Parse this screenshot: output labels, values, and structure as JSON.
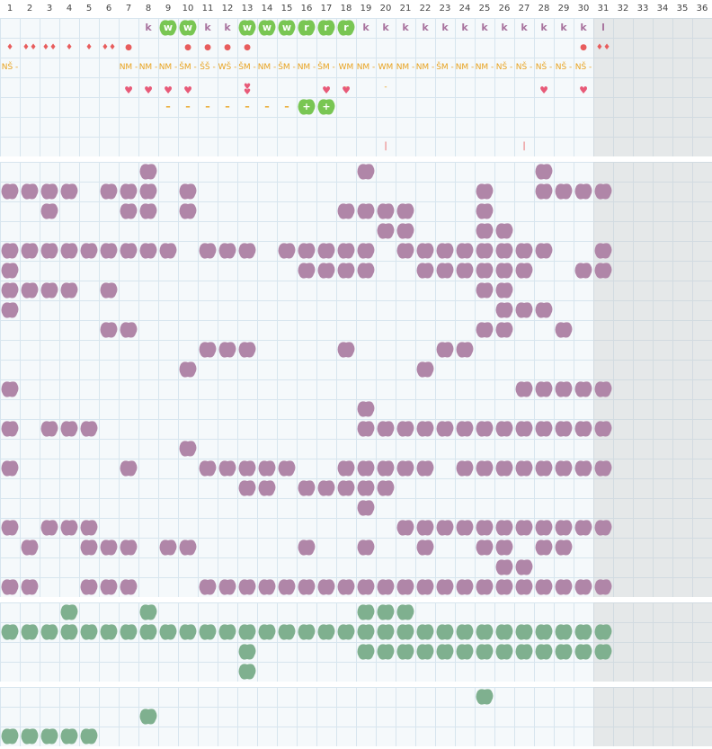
{
  "days": [
    "1",
    "2",
    "3",
    "4",
    "5",
    "6",
    "7",
    "8",
    "9",
    "10",
    "11",
    "12",
    "13",
    "14",
    "15",
    "16",
    "17",
    "18",
    "19",
    "20",
    "21",
    "22",
    "23",
    "24",
    "25",
    "26",
    "27",
    "28",
    "29",
    "30",
    "31",
    "32",
    "33",
    "34",
    "35",
    "36"
  ],
  "colors": {
    "bg": "#f5f9fb",
    "grid": "#d7e5ee",
    "weekend": "#efefef",
    "purple": "#b086a8",
    "green": "#7fb08f",
    "bright_green": "#79c653",
    "k_text": "#a8739e",
    "red": "#e85d5d",
    "orange": "#e8a21e",
    "heart": "#e85a78"
  },
  "top_rows": [
    {
      "name": "k-row",
      "cells": [
        {
          "day": 8,
          "type": "text",
          "value": "k"
        },
        {
          "day": 9,
          "type": "badge",
          "value": "w"
        },
        {
          "day": 10,
          "type": "badge",
          "value": "w"
        },
        {
          "day": 11,
          "type": "text",
          "value": "k"
        },
        {
          "day": 12,
          "type": "text",
          "value": "k"
        },
        {
          "day": 13,
          "type": "badge",
          "value": "w"
        },
        {
          "day": 14,
          "type": "badge",
          "value": "w"
        },
        {
          "day": 15,
          "type": "badge",
          "value": "w"
        },
        {
          "day": 16,
          "type": "badge",
          "value": "r"
        },
        {
          "day": 17,
          "type": "badge",
          "value": "r"
        },
        {
          "day": 18,
          "type": "badge",
          "value": "r"
        },
        {
          "day": 19,
          "type": "text",
          "value": "k"
        },
        {
          "day": 20,
          "type": "text",
          "value": "k"
        },
        {
          "day": 21,
          "type": "text",
          "value": "k"
        },
        {
          "day": 22,
          "type": "text",
          "value": "k"
        },
        {
          "day": 23,
          "type": "text",
          "value": "k"
        },
        {
          "day": 24,
          "type": "text",
          "value": "k"
        },
        {
          "day": 25,
          "type": "text",
          "value": "k"
        },
        {
          "day": 26,
          "type": "text",
          "value": "k"
        },
        {
          "day": 27,
          "type": "text",
          "value": "k"
        },
        {
          "day": 28,
          "type": "text",
          "value": "k"
        },
        {
          "day": 29,
          "type": "text",
          "value": "k"
        },
        {
          "day": 30,
          "type": "text",
          "value": "k"
        },
        {
          "day": 31,
          "type": "text",
          "value": "l"
        }
      ]
    },
    {
      "name": "drop-row",
      "cells": [
        {
          "day": 1,
          "type": "drop",
          "value": "1"
        },
        {
          "day": 2,
          "type": "drop",
          "value": "2"
        },
        {
          "day": 3,
          "type": "drop",
          "value": "2"
        },
        {
          "day": 4,
          "type": "drop",
          "value": "1"
        },
        {
          "day": 5,
          "type": "drop",
          "value": "1"
        },
        {
          "day": 6,
          "type": "drop",
          "value": "2"
        },
        {
          "day": 7,
          "type": "dot"
        },
        {
          "day": 10,
          "type": "dot"
        },
        {
          "day": 11,
          "type": "dot"
        },
        {
          "day": 12,
          "type": "dot"
        },
        {
          "day": 13,
          "type": "dot"
        },
        {
          "day": 30,
          "type": "dot"
        },
        {
          "day": 31,
          "type": "drop",
          "value": "2"
        }
      ]
    },
    {
      "name": "shift-row",
      "cells": [
        {
          "day": 1,
          "type": "code",
          "value": "NŠ -"
        },
        {
          "day": 7,
          "type": "code",
          "value": "NM -"
        },
        {
          "day": 8,
          "type": "code",
          "value": "NM -"
        },
        {
          "day": 9,
          "type": "code",
          "value": "NM -"
        },
        {
          "day": 10,
          "type": "code",
          "value": "ŠM -"
        },
        {
          "day": 11,
          "type": "code",
          "value": "ŠŠ -"
        },
        {
          "day": 12,
          "type": "code",
          "value": "WŠ -"
        },
        {
          "day": 13,
          "type": "code",
          "value": "ŠM -"
        },
        {
          "day": 14,
          "type": "code",
          "value": "NM -"
        },
        {
          "day": 15,
          "type": "code",
          "value": "ŠM -"
        },
        {
          "day": 16,
          "type": "code",
          "value": "NM -"
        },
        {
          "day": 17,
          "type": "code",
          "value": "ŠM -"
        },
        {
          "day": 18,
          "type": "code",
          "value": "WM -"
        },
        {
          "day": 19,
          "type": "code",
          "value": "NM -"
        },
        {
          "day": 20,
          "type": "code",
          "value": "WM -"
        },
        {
          "day": 21,
          "type": "code",
          "value": "NM -"
        },
        {
          "day": 22,
          "type": "code",
          "value": "NM -"
        },
        {
          "day": 23,
          "type": "code",
          "value": "ŠM -"
        },
        {
          "day": 24,
          "type": "code",
          "value": "NM -"
        },
        {
          "day": 25,
          "type": "code",
          "value": "NM -"
        },
        {
          "day": 26,
          "type": "code",
          "value": "NŠ -"
        },
        {
          "day": 27,
          "type": "code",
          "value": "NŠ -"
        },
        {
          "day": 28,
          "type": "code",
          "value": "NŠ -"
        },
        {
          "day": 29,
          "type": "code",
          "value": "NŠ -"
        },
        {
          "day": 30,
          "type": "code",
          "value": "NŠ -"
        }
      ]
    },
    {
      "name": "heart-row",
      "cells": [
        {
          "day": 7,
          "type": "heart"
        },
        {
          "day": 8,
          "type": "heart"
        },
        {
          "day": 9,
          "type": "heart"
        },
        {
          "day": 10,
          "type": "heart"
        },
        {
          "day": 13,
          "type": "heart2"
        },
        {
          "day": 17,
          "type": "heart"
        },
        {
          "day": 18,
          "type": "heart"
        },
        {
          "day": 28,
          "type": "heart"
        },
        {
          "day": 30,
          "type": "heart"
        }
      ]
    },
    {
      "name": "dash-row",
      "cells": [
        {
          "day": 9,
          "type": "dash"
        },
        {
          "day": 10,
          "type": "dash"
        },
        {
          "day": 11,
          "type": "dash"
        },
        {
          "day": 12,
          "type": "dash"
        },
        {
          "day": 13,
          "type": "dash"
        },
        {
          "day": 14,
          "type": "dash"
        },
        {
          "day": 15,
          "type": "dash"
        },
        {
          "day": 16,
          "type": "badge",
          "value": "+"
        },
        {
          "day": 17,
          "type": "badge",
          "value": "+"
        }
      ]
    },
    {
      "name": "empty-row",
      "cells": []
    },
    {
      "name": "tick-row",
      "cells": [
        {
          "day": 20,
          "type": "tick"
        },
        {
          "day": 27,
          "type": "tick"
        }
      ]
    }
  ],
  "purple_rows": [
    [
      8,
      19,
      28
    ],
    [
      1,
      2,
      3,
      4,
      6,
      7,
      8,
      10,
      25,
      28,
      29,
      30,
      31
    ],
    [
      3,
      7,
      8,
      10,
      18,
      19,
      20,
      21,
      25
    ],
    [
      20,
      21,
      25,
      26
    ],
    [
      1,
      2,
      3,
      4,
      5,
      6,
      7,
      8,
      9,
      11,
      12,
      13,
      15,
      16,
      17,
      18,
      19,
      21,
      22,
      23,
      24,
      25,
      26,
      27,
      28,
      31
    ],
    [
      1,
      16,
      17,
      18,
      19,
      22,
      23,
      24,
      25,
      26,
      27,
      30,
      31
    ],
    [
      1,
      2,
      3,
      4,
      6,
      25,
      26
    ],
    [
      1,
      26,
      27,
      28
    ],
    [
      6,
      7,
      25,
      26,
      29
    ],
    [
      11,
      12,
      13,
      18,
      23,
      24
    ],
    [
      10,
      22
    ],
    [
      1,
      27,
      28,
      29,
      30,
      31
    ],
    [
      19
    ],
    [
      1,
      3,
      4,
      5,
      19,
      20,
      21,
      22,
      23,
      24,
      25,
      26,
      27,
      28,
      29,
      30,
      31
    ],
    [
      10
    ],
    [
      1,
      7,
      11,
      12,
      13,
      14,
      15,
      18,
      19,
      20,
      21,
      22,
      24,
      25,
      26,
      27,
      28,
      29,
      30,
      31
    ],
    [
      13,
      14,
      16,
      17,
      18,
      19,
      20
    ],
    [
      19
    ],
    [
      1,
      3,
      4,
      5,
      21,
      22,
      23,
      24,
      25,
      26,
      27,
      28,
      29,
      30,
      31
    ],
    [
      2,
      5,
      6,
      7,
      9,
      10,
      16,
      19,
      22,
      25,
      26,
      28,
      29
    ],
    [
      26,
      27
    ],
    [
      1,
      2,
      5,
      6,
      7,
      11,
      12,
      13,
      14,
      15,
      16,
      17,
      18,
      19,
      20,
      21,
      22,
      23,
      24,
      25,
      26,
      27,
      28,
      29,
      30,
      31
    ]
  ],
  "green_rows": [
    [
      4,
      8,
      19,
      20,
      21
    ],
    [
      1,
      2,
      3,
      4,
      5,
      6,
      7,
      8,
      9,
      10,
      11,
      12,
      13,
      14,
      15,
      16,
      17,
      18,
      19,
      20,
      21,
      22,
      23,
      24,
      25,
      26,
      27,
      28,
      29,
      30,
      31
    ],
    [
      13,
      19,
      20,
      21,
      22,
      23,
      24,
      25,
      26,
      27,
      28,
      29,
      30,
      31
    ],
    [
      13
    ]
  ],
  "extra_rows": [
    [
      25
    ],
    [
      8
    ],
    [
      1,
      2,
      3,
      4,
      5
    ]
  ]
}
